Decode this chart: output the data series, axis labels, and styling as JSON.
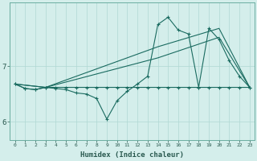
{
  "xlabel": "Humidex (Indice chaleur)",
  "bg_color": "#d4eeeb",
  "grid_color": "#b0d8d4",
  "line_color": "#1a6b60",
  "xlim_min": -0.5,
  "xlim_max": 23.5,
  "ylim_min": 5.68,
  "ylim_max": 8.15,
  "ytick_vals": [
    6.0,
    7.0
  ],
  "ytick_labels": [
    "6",
    "7"
  ],
  "xtick_vals": [
    0,
    1,
    2,
    3,
    4,
    5,
    6,
    7,
    8,
    9,
    10,
    11,
    12,
    13,
    14,
    15,
    16,
    17,
    18,
    19,
    20,
    21,
    22,
    23
  ],
  "line_zigzag_x": [
    0,
    1,
    2,
    3,
    4,
    5,
    6,
    7,
    8,
    9,
    10,
    11,
    12,
    13,
    14,
    15,
    16,
    17,
    18,
    19,
    20,
    21,
    22,
    23
  ],
  "line_zigzag_y": [
    6.68,
    6.6,
    6.58,
    6.62,
    6.6,
    6.58,
    6.52,
    6.5,
    6.42,
    6.05,
    6.38,
    6.55,
    6.68,
    6.82,
    7.75,
    7.88,
    7.65,
    7.58,
    6.62,
    7.68,
    7.48,
    7.1,
    6.82,
    6.62
  ],
  "line_flat_x": [
    0,
    1,
    2,
    3,
    4,
    5,
    6,
    7,
    8,
    9,
    10,
    11,
    12,
    13,
    14,
    15,
    16,
    17,
    18,
    19,
    20,
    21,
    22,
    23
  ],
  "line_flat_y": [
    6.68,
    6.6,
    6.58,
    6.62,
    6.62,
    6.62,
    6.62,
    6.62,
    6.62,
    6.62,
    6.62,
    6.62,
    6.62,
    6.62,
    6.62,
    6.62,
    6.62,
    6.62,
    6.62,
    6.62,
    6.62,
    6.62,
    6.62,
    6.62
  ],
  "line_diag1_x": [
    0,
    3,
    14,
    20,
    23
  ],
  "line_diag1_y": [
    6.68,
    6.62,
    7.15,
    7.52,
    6.62
  ],
  "line_diag2_x": [
    0,
    3,
    14,
    20,
    23
  ],
  "line_diag2_y": [
    6.68,
    6.62,
    7.35,
    7.68,
    6.62
  ]
}
